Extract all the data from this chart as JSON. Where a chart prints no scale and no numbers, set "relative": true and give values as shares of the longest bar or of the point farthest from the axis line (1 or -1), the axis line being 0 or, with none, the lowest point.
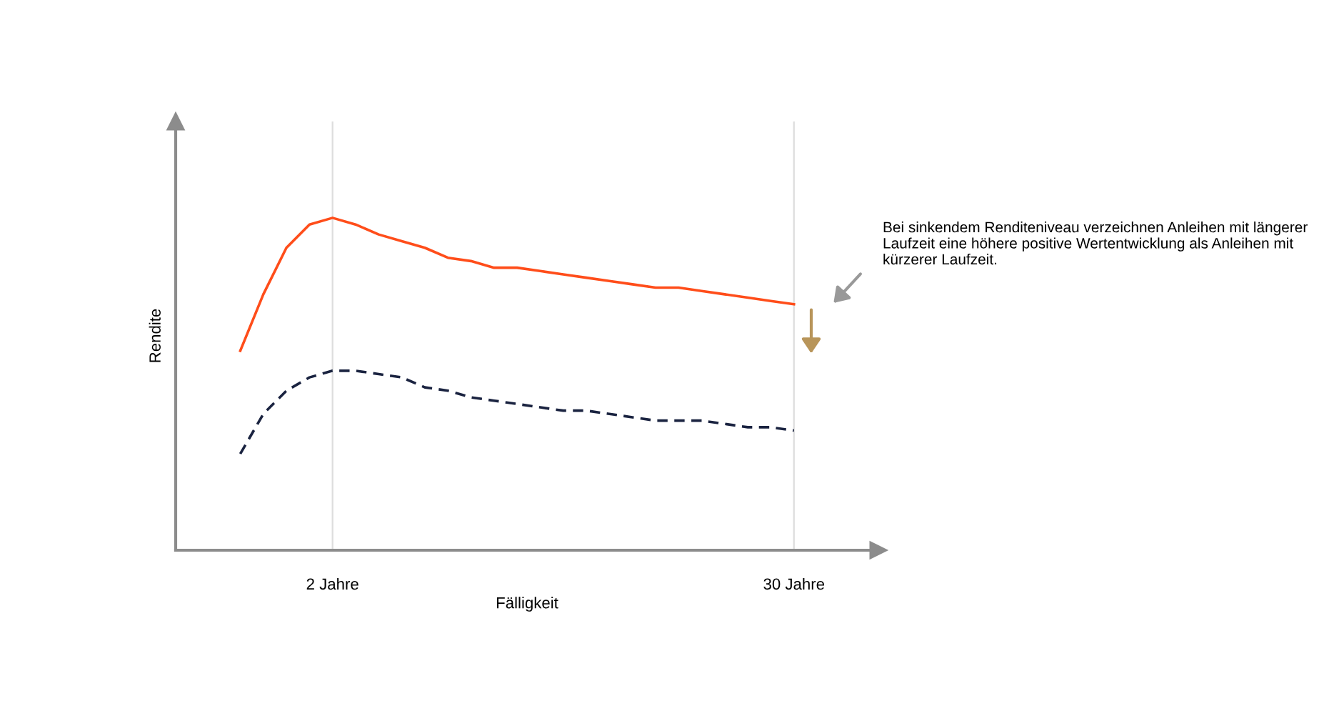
{
  "chart_data": {
    "type": "line",
    "relative": true,
    "xlabel": "Fälligkeit",
    "ylabel": "Rendite",
    "categories": [
      null,
      null,
      null,
      null,
      "2 Jahre",
      null,
      null,
      null,
      null,
      null,
      null,
      null,
      null,
      null,
      null,
      null,
      null,
      null,
      null,
      null,
      null,
      null,
      null,
      null,
      "30 Jahre"
    ],
    "grid": "x",
    "series": [
      {
        "color": "#ff4d1a",
        "line_style": "solid",
        "values": [
          0.6,
          0.77,
          0.91,
          0.98,
          1,
          0.98,
          0.95,
          0.93,
          0.91,
          0.88,
          0.87,
          0.85,
          0.85,
          0.84,
          0.83,
          0.82,
          0.81,
          0.8,
          0.79,
          0.79,
          0.78,
          0.77,
          0.76,
          0.75,
          0.74
        ]
      },
      {
        "color": "#1a2340",
        "line_style": "dashed",
        "values": [
          0.29,
          0.41,
          0.48,
          0.52,
          0.54,
          0.54,
          0.53,
          0.52,
          0.49,
          0.48,
          0.46,
          0.45,
          0.44,
          0.43,
          0.42,
          0.42,
          0.41,
          0.4,
          0.39,
          0.39,
          0.39,
          0.38,
          0.37,
          0.37,
          0.36
        ]
      }
    ],
    "annotations": [
      "Bei sinkendem Renditeniveau verzeichnen Anleihen mit längerer Laufzeit eine höhere positive Wertentwicklung als Anleihen mit kürzerer Laufzeit."
    ]
  }
}
